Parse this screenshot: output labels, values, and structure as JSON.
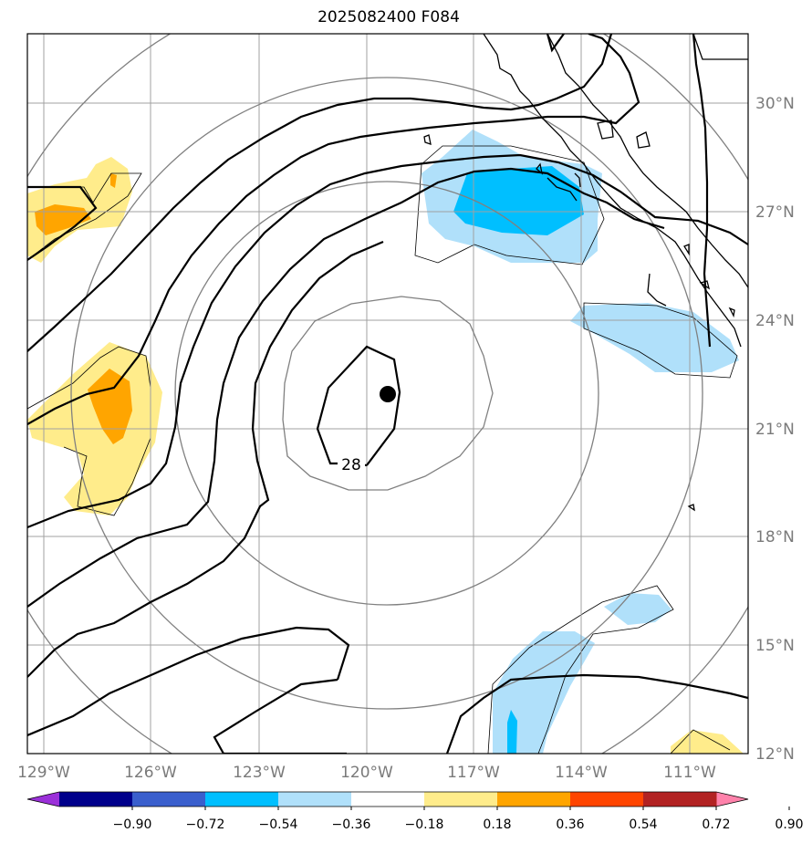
{
  "title": "2025082400 F084",
  "map": {
    "lon_ticks": [
      "129°W",
      "126°W",
      "123°W",
      "120°W",
      "117°W",
      "114°W",
      "111°W"
    ],
    "lat_ticks": [
      "30°N",
      "27°N",
      "24°N",
      "21°N",
      "18°N",
      "15°N",
      "12°N"
    ],
    "contour_label": "28",
    "center_marker": "storm-center"
  },
  "colorbar": {
    "labels": [
      "−0.90",
      "−0.72",
      "−0.54",
      "−0.36",
      "−0.18",
      "0.18",
      "0.36",
      "0.54",
      "0.72",
      "0.90"
    ],
    "colors": [
      "#9b30d9",
      "#00008b",
      "#3a5fcd",
      "#00bfff",
      "#b0e0fa",
      "#ffffff",
      "#ffec8b",
      "#ffa500",
      "#ff4500",
      "#b22222",
      "#ff82ab"
    ]
  }
}
